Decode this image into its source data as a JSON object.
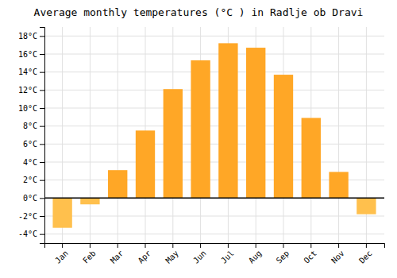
{
  "chart_data": {
    "type": "bar",
    "title": "Average monthly temperatures (°C ) in Radlje ob Dravi",
    "categories": [
      "Jan",
      "Feb",
      "Mar",
      "Apr",
      "May",
      "Jun",
      "Jul",
      "Aug",
      "Sep",
      "Oct",
      "Nov",
      "Dec"
    ],
    "values": [
      -3.3,
      -0.7,
      3.1,
      7.5,
      12.1,
      15.3,
      17.2,
      16.7,
      13.7,
      8.9,
      2.9,
      -1.8
    ],
    "colors": [
      "#FFC04D",
      "#FFC04D",
      "#FFA726",
      "#FFA726",
      "#FFA726",
      "#FFA726",
      "#FFA726",
      "#FFA726",
      "#FFA726",
      "#FFA726",
      "#FFA726",
      "#FFC04D"
    ],
    "ylim": [
      -5,
      19
    ],
    "yticks": [
      {
        "value": -4,
        "label": "-4°C"
      },
      {
        "value": -2,
        "label": "-2°C"
      },
      {
        "value": 0,
        "label": "0°C"
      },
      {
        "value": 2,
        "label": "2°C"
      },
      {
        "value": 4,
        "label": "4°C"
      },
      {
        "value": 6,
        "label": "6°C"
      },
      {
        "value": 8,
        "label": "8°C"
      },
      {
        "value": 10,
        "label": "10°C"
      },
      {
        "value": 12,
        "label": "12°C"
      },
      {
        "value": 14,
        "label": "14°C"
      },
      {
        "value": 16,
        "label": "16°C"
      },
      {
        "value": 18,
        "label": "18°C"
      }
    ],
    "grid": true
  }
}
